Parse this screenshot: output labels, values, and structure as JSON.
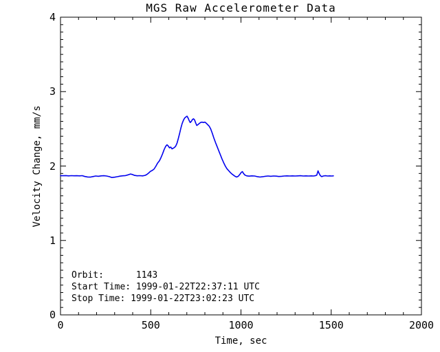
{
  "chart_data": {
    "type": "line",
    "title": "MGS Raw Accelerometer Data",
    "xlabel": "Time, sec",
    "ylabel": "Velocity Change, mm/s",
    "xlim": [
      0,
      2000
    ],
    "ylim": [
      0,
      4
    ],
    "xticks": [
      0,
      500,
      1000,
      1500,
      2000
    ],
    "yticks": [
      0,
      1,
      2,
      3,
      4
    ],
    "x_minor_interval": 100,
    "y_minor_interval": 0.1,
    "grid": false,
    "legend_position": "none",
    "line_color": "#0000ee",
    "axis_color": "#000000",
    "background_color": "#ffffff",
    "series": [
      {
        "name": "velocity_change_mm_per_s",
        "points": [
          [
            0,
            1.87
          ],
          [
            15,
            1.87
          ],
          [
            30,
            1.872
          ],
          [
            45,
            1.868
          ],
          [
            60,
            1.871
          ],
          [
            75,
            1.869
          ],
          [
            90,
            1.87
          ],
          [
            105,
            1.868
          ],
          [
            120,
            1.871
          ],
          [
            135,
            1.86
          ],
          [
            150,
            1.853
          ],
          [
            165,
            1.851
          ],
          [
            180,
            1.859
          ],
          [
            195,
            1.866
          ],
          [
            210,
            1.862
          ],
          [
            225,
            1.868
          ],
          [
            240,
            1.87
          ],
          [
            255,
            1.866
          ],
          [
            270,
            1.858
          ],
          [
            285,
            1.846
          ],
          [
            300,
            1.85
          ],
          [
            315,
            1.857
          ],
          [
            330,
            1.864
          ],
          [
            345,
            1.869
          ],
          [
            360,
            1.872
          ],
          [
            375,
            1.882
          ],
          [
            388,
            1.893
          ],
          [
            398,
            1.886
          ],
          [
            410,
            1.874
          ],
          [
            425,
            1.869
          ],
          [
            440,
            1.871
          ],
          [
            455,
            1.868
          ],
          [
            468,
            1.874
          ],
          [
            478,
            1.885
          ],
          [
            488,
            1.905
          ],
          [
            498,
            1.928
          ],
          [
            508,
            1.94
          ],
          [
            518,
            1.958
          ],
          [
            528,
            1.995
          ],
          [
            538,
            2.04
          ],
          [
            548,
            2.07
          ],
          [
            556,
            2.11
          ],
          [
            565,
            2.16
          ],
          [
            574,
            2.22
          ],
          [
            583,
            2.265
          ],
          [
            590,
            2.285
          ],
          [
            597,
            2.27
          ],
          [
            604,
            2.245
          ],
          [
            611,
            2.255
          ],
          [
            618,
            2.23
          ],
          [
            625,
            2.24
          ],
          [
            632,
            2.25
          ],
          [
            639,
            2.27
          ],
          [
            646,
            2.31
          ],
          [
            653,
            2.37
          ],
          [
            660,
            2.44
          ],
          [
            667,
            2.51
          ],
          [
            674,
            2.57
          ],
          [
            681,
            2.615
          ],
          [
            688,
            2.645
          ],
          [
            695,
            2.66
          ],
          [
            701,
            2.67
          ],
          [
            707,
            2.645
          ],
          [
            713,
            2.61
          ],
          [
            719,
            2.585
          ],
          [
            725,
            2.6
          ],
          [
            731,
            2.625
          ],
          [
            737,
            2.635
          ],
          [
            743,
            2.62
          ],
          [
            749,
            2.58
          ],
          [
            755,
            2.545
          ],
          [
            761,
            2.555
          ],
          [
            768,
            2.57
          ],
          [
            776,
            2.585
          ],
          [
            784,
            2.59
          ],
          [
            792,
            2.585
          ],
          [
            800,
            2.59
          ],
          [
            808,
            2.575
          ],
          [
            816,
            2.555
          ],
          [
            824,
            2.535
          ],
          [
            832,
            2.5
          ],
          [
            841,
            2.44
          ],
          [
            850,
            2.375
          ],
          [
            859,
            2.315
          ],
          [
            868,
            2.26
          ],
          [
            877,
            2.205
          ],
          [
            886,
            2.15
          ],
          [
            895,
            2.095
          ],
          [
            904,
            2.045
          ],
          [
            913,
            2.0
          ],
          [
            922,
            1.965
          ],
          [
            931,
            1.94
          ],
          [
            940,
            1.915
          ],
          [
            949,
            1.895
          ],
          [
            958,
            1.878
          ],
          [
            967,
            1.862
          ],
          [
            976,
            1.852
          ],
          [
            985,
            1.862
          ],
          [
            994,
            1.888
          ],
          [
            1002,
            1.915
          ],
          [
            1008,
            1.925
          ],
          [
            1014,
            1.9
          ],
          [
            1022,
            1.878
          ],
          [
            1032,
            1.868
          ],
          [
            1045,
            1.864
          ],
          [
            1060,
            1.868
          ],
          [
            1075,
            1.866
          ],
          [
            1090,
            1.858
          ],
          [
            1105,
            1.852
          ],
          [
            1120,
            1.856
          ],
          [
            1135,
            1.862
          ],
          [
            1150,
            1.866
          ],
          [
            1165,
            1.862
          ],
          [
            1180,
            1.866
          ],
          [
            1195,
            1.864
          ],
          [
            1210,
            1.86
          ],
          [
            1225,
            1.862
          ],
          [
            1240,
            1.866
          ],
          [
            1255,
            1.868
          ],
          [
            1270,
            1.866
          ],
          [
            1285,
            1.868
          ],
          [
            1300,
            1.866
          ],
          [
            1315,
            1.868
          ],
          [
            1330,
            1.87
          ],
          [
            1345,
            1.866
          ],
          [
            1360,
            1.868
          ],
          [
            1375,
            1.866
          ],
          [
            1390,
            1.868
          ],
          [
            1402,
            1.866
          ],
          [
            1412,
            1.87
          ],
          [
            1420,
            1.878
          ],
          [
            1427,
            1.935
          ],
          [
            1433,
            1.9
          ],
          [
            1440,
            1.87
          ],
          [
            1448,
            1.858
          ],
          [
            1456,
            1.866
          ],
          [
            1468,
            1.87
          ],
          [
            1480,
            1.866
          ],
          [
            1492,
            1.868
          ],
          [
            1503,
            1.866
          ],
          [
            1512,
            1.868
          ]
        ]
      }
    ],
    "annotations_inside_plot": [
      "Orbit:      1143",
      "Start Time: 1999-01-22T22:37:11 UTC",
      "Stop Time: 1999-01-22T23:02:23 UTC"
    ]
  },
  "annotations": {
    "lines": [
      "Orbit:      1143",
      "Start Time: 1999-01-22T22:37:11 UTC",
      "Stop Time: 1999-01-22T23:02:23 UTC"
    ]
  }
}
